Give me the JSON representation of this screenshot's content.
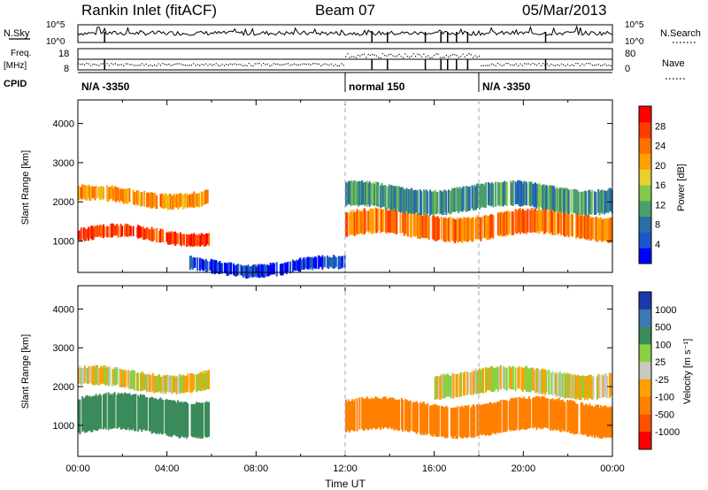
{
  "header": {
    "station": "Rankin Inlet (fitACF)",
    "beam": "Beam 07",
    "date": "05/Mar/2013"
  },
  "summary": {
    "nsky_label": "N.Sky",
    "nsky_ticks": [
      "10^5",
      "10^0"
    ],
    "nsearch_label": "N.Search",
    "nsearch_ticks": [
      "10^5",
      "10^0"
    ],
    "freq_label": "Freq.",
    "freq_unit": "[MHz]",
    "freq_ticks": [
      "18",
      "8"
    ],
    "nave_label": "Nave",
    "nave_ticks": [
      "80",
      "0"
    ],
    "cpid_label": "CPID",
    "cpid_segments": [
      {
        "text": "N/A -3350",
        "start_hour": 0
      },
      {
        "text": "normal 150",
        "start_hour": 12
      },
      {
        "text": "N/A -3350",
        "start_hour": 18
      }
    ]
  },
  "colors": {
    "power": [
      "#0000ff",
      "#1a56c9",
      "#2a6ea8",
      "#4a9f6a",
      "#86c84a",
      "#e8d030",
      "#ffa000",
      "#ff7000",
      "#ff3c00",
      "#ff0000"
    ],
    "velocity": [
      "#1a3aa8",
      "#3a7ab0",
      "#3a8a5a",
      "#8ad040",
      "#c8c8c0",
      "#ffa000",
      "#ff8000",
      "#ff5000",
      "#ff0000"
    ]
  },
  "chart_data": [
    {
      "type": "heatmap",
      "title": "Power",
      "xlabel": "",
      "ylabel": "Slant Range [km]",
      "xlim": [
        0,
        24
      ],
      "ylim": [
        200,
        4600
      ],
      "yticks": [
        1000,
        2000,
        3000,
        4000
      ],
      "colorbar": {
        "label": "Power [dB]",
        "range": [
          0,
          32
        ],
        "ticks": [
          "4",
          "8",
          "12",
          "16",
          "20",
          "24",
          "28"
        ]
      },
      "series": [
        {
          "x": [
            0.0,
            5.9
          ],
          "range_km": [
            1000,
            1300
          ],
          "value_db": 28
        },
        {
          "x": [
            0.0,
            5.9
          ],
          "range_km": [
            1950,
            2300
          ],
          "value_db": 22
        },
        {
          "x": [
            12.0,
            24.0
          ],
          "range_km": [
            1100,
            1700
          ],
          "value_db": 24
        },
        {
          "x": [
            12.0,
            24.0
          ],
          "range_km": [
            1800,
            2400
          ],
          "value_db": 10
        },
        {
          "x": [
            5.0,
            12.0
          ],
          "range_km": [
            200,
            500
          ],
          "value_db": 4
        }
      ]
    },
    {
      "type": "heatmap",
      "title": "Velocity",
      "xlabel": "Time UT",
      "ylabel": "Slant Range [km]",
      "xlim": [
        0,
        24
      ],
      "ylim": [
        200,
        4600
      ],
      "yticks": [
        1000,
        2000,
        3000,
        4000
      ],
      "xticks": [
        "00:00",
        "04:00",
        "08:00",
        "12:00",
        "16:00",
        "20:00",
        "00:00"
      ],
      "colorbar": {
        "label": "Velocity [m s⁻¹]",
        "ticks": [
          "1000",
          "500",
          "100",
          "25",
          "-25",
          "-100",
          "-500",
          "-1000"
        ]
      },
      "series": [
        {
          "x": [
            0.0,
            5.9
          ],
          "range_km": [
            800,
            1700
          ],
          "value_ms": 150
        },
        {
          "x": [
            0.0,
            5.9
          ],
          "range_km": [
            1950,
            2400
          ],
          "value_ms": 0
        },
        {
          "x": [
            12.0,
            24.0
          ],
          "range_km": [
            800,
            1600
          ],
          "value_ms": -150
        },
        {
          "x": [
            16.0,
            24.0
          ],
          "range_km": [
            1800,
            2400
          ],
          "value_ms": 0
        }
      ]
    }
  ]
}
